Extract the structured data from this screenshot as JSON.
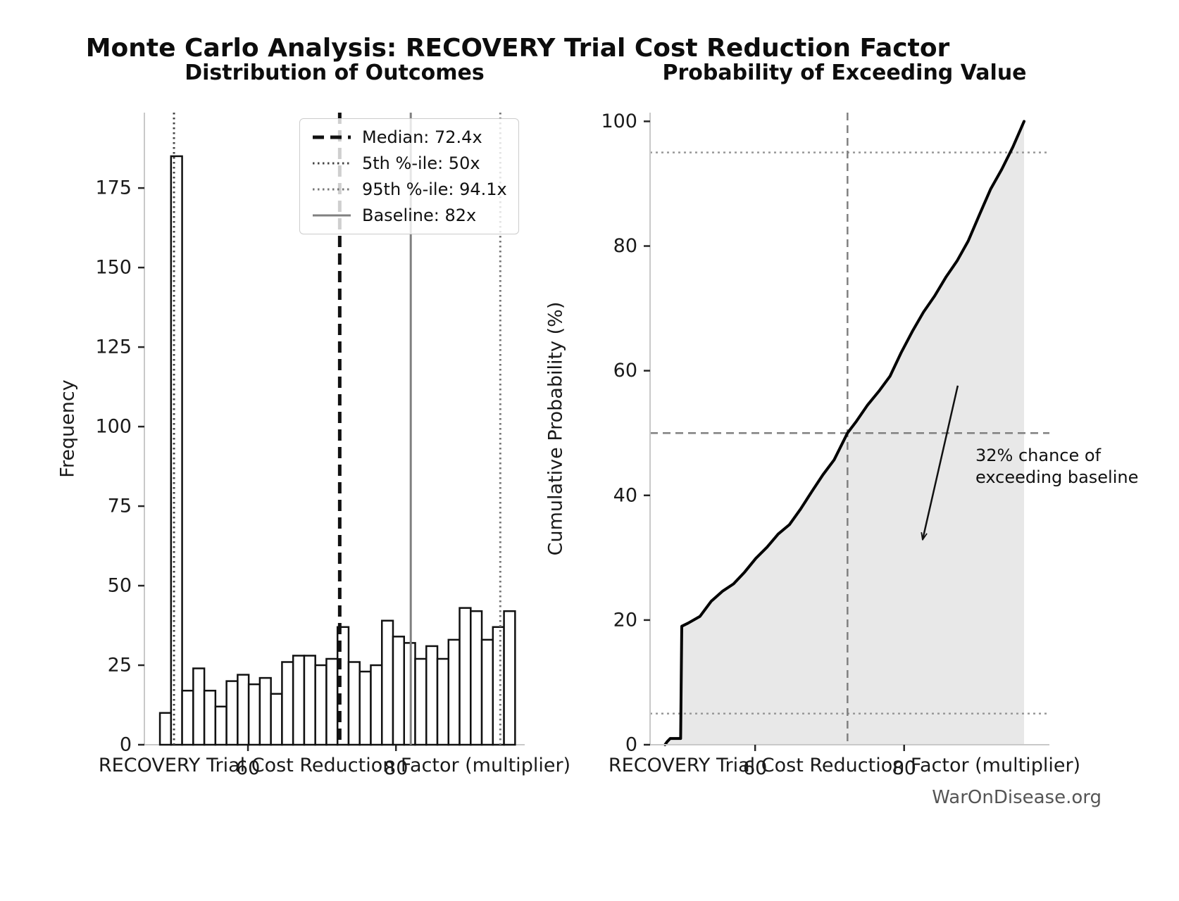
{
  "title": "Monte Carlo Analysis: RECOVERY Trial Cost Reduction Factor",
  "watermark": "WarOnDisease.org",
  "colors": {
    "bar_fill": "#ffffff",
    "bar_edge": "#111111",
    "curve": "#000000",
    "fill_under_curve": "#e8e8e8",
    "crosshair_dash": "#808080",
    "crosshair_dot": "#999999",
    "spine": "#c9c9c9",
    "tick": "#262626",
    "text": "#1a1a1a",
    "legend_border": "#cccccc",
    "watermark": "#555555"
  },
  "chart_data": [
    {
      "type": "bar",
      "subtype": "histogram",
      "title": "Distribution of Outcomes",
      "xlabel": "RECOVERY Trial Cost Reduction Factor (multiplier)",
      "ylabel": "Frequency",
      "bin_start": 48.1,
      "bin_width": 1.5,
      "values": [
        10,
        185,
        17,
        24,
        17,
        12,
        20,
        22,
        19,
        21,
        16,
        26,
        28,
        28,
        25,
        27,
        37,
        26,
        23,
        25,
        39,
        34,
        32,
        27,
        31,
        27,
        33,
        43,
        42,
        33,
        37,
        42
      ],
      "xlim": [
        46.0,
        97.4
      ],
      "ylim": [
        0,
        198.7
      ],
      "yticks": [
        0,
        25,
        50,
        75,
        100,
        125,
        150,
        175
      ],
      "xticks": [
        60,
        80
      ],
      "grid": false,
      "legend_position": "upper center-right",
      "ref_lines": [
        {
          "label": "Median: 72.4x",
          "x": 72.4,
          "style": "dashed",
          "color": "#111111",
          "width": 5
        },
        {
          "label": "5th %-ile: 50x",
          "x": 50.0,
          "style": "dotted",
          "color": "#444444",
          "width": 3
        },
        {
          "label": "95th %-ile: 94.1x",
          "x": 94.1,
          "style": "dotted",
          "color": "#777777",
          "width": 3
        },
        {
          "label": "Baseline: 82x",
          "x": 82.0,
          "style": "solid",
          "color": "#808080",
          "width": 3
        }
      ]
    },
    {
      "type": "line",
      "subtype": "cumulative-distribution",
      "title": "Probability of Exceeding Value",
      "xlabel": "RECOVERY Trial Cost Reduction Factor (multiplier)",
      "ylabel": "Cumulative Probability (%)",
      "xlim": [
        45.9,
        99.5
      ],
      "ylim": [
        0,
        101.4
      ],
      "yticks": [
        0,
        20,
        40,
        60,
        80,
        100
      ],
      "xticks": [
        60,
        80
      ],
      "grid": false,
      "cdf_points": [
        [
          47.9,
          0
        ],
        [
          48.2,
          0.5
        ],
        [
          48.6,
          1.0
        ],
        [
          50.0,
          1.0
        ],
        [
          50.15,
          19.0
        ],
        [
          51.0,
          19.5
        ],
        [
          52.6,
          20.6
        ],
        [
          54.1,
          23.0
        ],
        [
          55.6,
          24.6
        ],
        [
          57.1,
          25.8
        ],
        [
          58.6,
          27.7
        ],
        [
          60.1,
          29.9
        ],
        [
          61.6,
          31.7
        ],
        [
          63.1,
          33.8
        ],
        [
          64.6,
          35.3
        ],
        [
          66.1,
          37.8
        ],
        [
          67.6,
          40.6
        ],
        [
          69.1,
          43.3
        ],
        [
          70.6,
          45.7
        ],
        [
          72.4,
          50.0
        ],
        [
          73.6,
          51.9
        ],
        [
          75.1,
          54.5
        ],
        [
          76.6,
          56.7
        ],
        [
          78.1,
          59.1
        ],
        [
          79.6,
          62.9
        ],
        [
          81.1,
          66.3
        ],
        [
          82.6,
          69.4
        ],
        [
          84.1,
          72.0
        ],
        [
          85.6,
          75.0
        ],
        [
          87.1,
          77.6
        ],
        [
          88.6,
          80.8
        ],
        [
          90.1,
          85.0
        ],
        [
          91.6,
          89.1
        ],
        [
          93.1,
          92.3
        ],
        [
          94.6,
          95.9
        ],
        [
          96.1,
          100
        ]
      ],
      "crosshair": {
        "h_dashed": 50,
        "v_dashed": 72.4,
        "h_dotted": [
          5,
          95
        ]
      },
      "annotation": {
        "line1": "32% chance of",
        "line2": "exceeding baseline",
        "arrow_from": [
          87.2,
          57.6
        ],
        "arrow_to": [
          82.5,
          33.0
        ]
      }
    }
  ]
}
